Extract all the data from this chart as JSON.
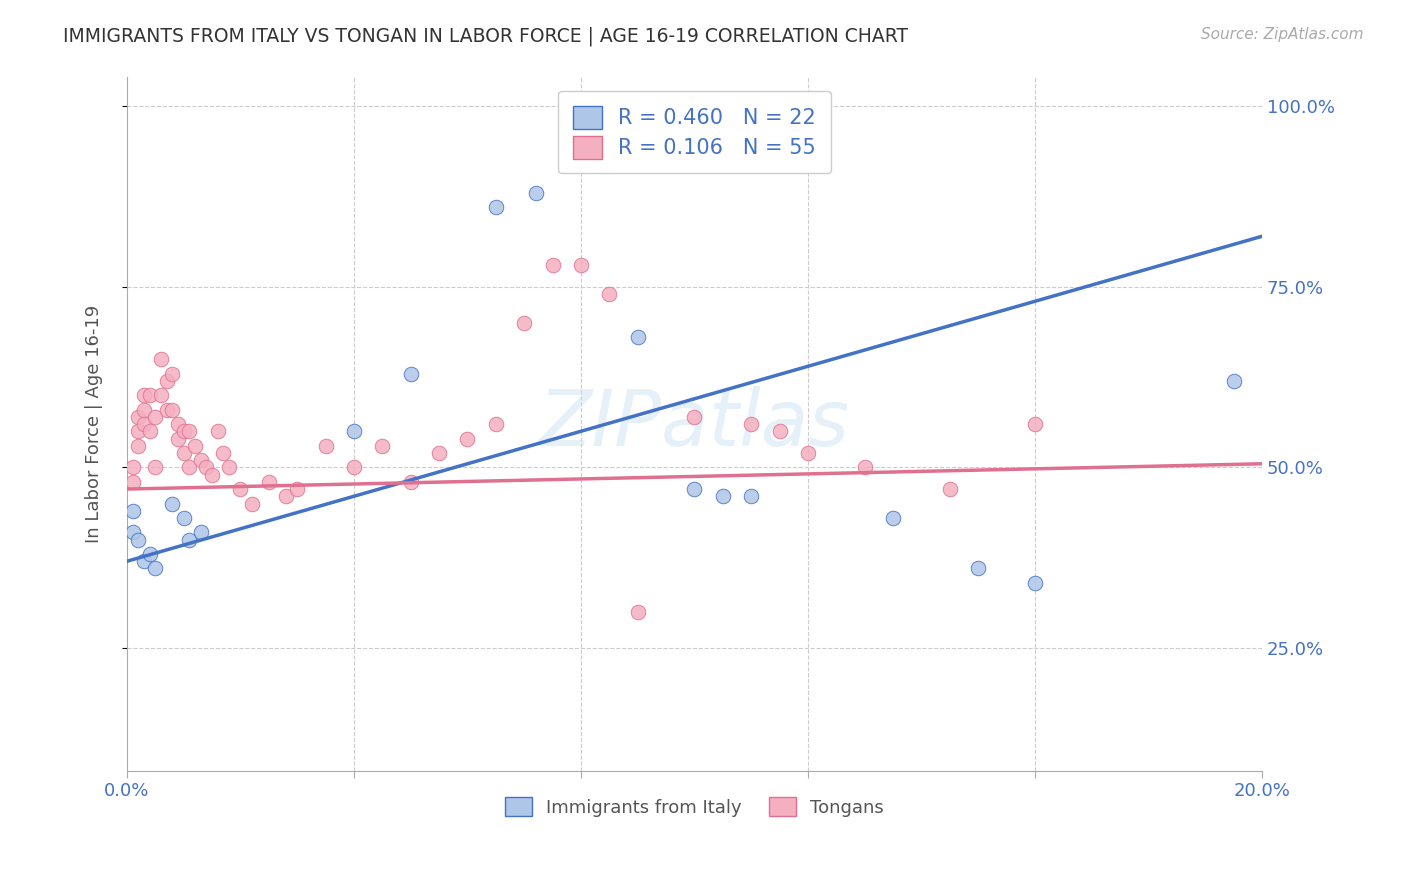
{
  "title": "IMMIGRANTS FROM ITALY VS TONGAN IN LABOR FORCE | AGE 16-19 CORRELATION CHART",
  "source": "Source: ZipAtlas.com",
  "ylabel": "In Labor Force | Age 16-19",
  "xlim": [
    0.0,
    0.2
  ],
  "ylim": [
    0.08,
    1.04
  ],
  "italy_color": "#aec6e8",
  "tongan_color": "#f4afc0",
  "italy_line_color": "#4472c4",
  "tongan_line_color": "#e07090",
  "italy_R": 0.46,
  "italy_N": 22,
  "tongan_R": 0.106,
  "tongan_N": 55,
  "watermark": "ZIPatlas",
  "italy_x": [
    0.001,
    0.001,
    0.002,
    0.003,
    0.004,
    0.005,
    0.008,
    0.01,
    0.011,
    0.013,
    0.04,
    0.05,
    0.065,
    0.072,
    0.09,
    0.1,
    0.105,
    0.11,
    0.135,
    0.15,
    0.16,
    0.195
  ],
  "italy_y": [
    0.44,
    0.41,
    0.4,
    0.37,
    0.38,
    0.36,
    0.45,
    0.43,
    0.4,
    0.41,
    0.55,
    0.63,
    0.86,
    0.88,
    0.68,
    0.47,
    0.46,
    0.46,
    0.43,
    0.36,
    0.34,
    0.62
  ],
  "tongan_x": [
    0.001,
    0.001,
    0.002,
    0.002,
    0.002,
    0.003,
    0.003,
    0.003,
    0.004,
    0.004,
    0.005,
    0.005,
    0.006,
    0.006,
    0.007,
    0.007,
    0.008,
    0.008,
    0.009,
    0.009,
    0.01,
    0.01,
    0.011,
    0.011,
    0.012,
    0.013,
    0.014,
    0.015,
    0.016,
    0.017,
    0.018,
    0.02,
    0.022,
    0.025,
    0.028,
    0.03,
    0.035,
    0.04,
    0.045,
    0.05,
    0.055,
    0.06,
    0.065,
    0.07,
    0.075,
    0.08,
    0.085,
    0.09,
    0.1,
    0.11,
    0.115,
    0.12,
    0.13,
    0.145,
    0.16
  ],
  "tongan_y": [
    0.5,
    0.48,
    0.57,
    0.55,
    0.53,
    0.6,
    0.58,
    0.56,
    0.6,
    0.55,
    0.57,
    0.5,
    0.65,
    0.6,
    0.62,
    0.58,
    0.63,
    0.58,
    0.56,
    0.54,
    0.55,
    0.52,
    0.5,
    0.55,
    0.53,
    0.51,
    0.5,
    0.49,
    0.55,
    0.52,
    0.5,
    0.47,
    0.45,
    0.48,
    0.46,
    0.47,
    0.53,
    0.5,
    0.53,
    0.48,
    0.52,
    0.54,
    0.56,
    0.7,
    0.78,
    0.78,
    0.74,
    0.3,
    0.57,
    0.56,
    0.55,
    0.52,
    0.5,
    0.47,
    0.56
  ]
}
